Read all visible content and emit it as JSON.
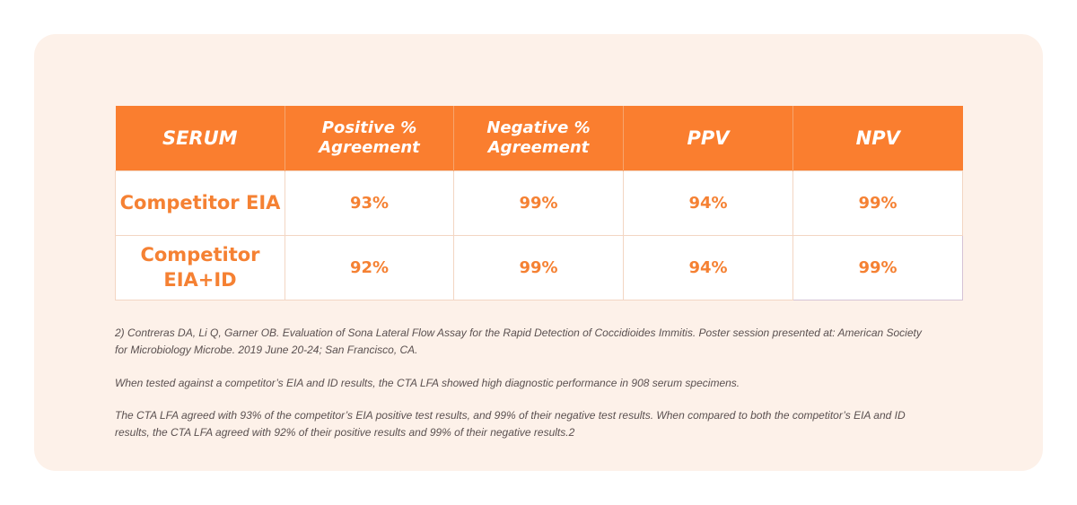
{
  "table": {
    "headers": [
      {
        "line1": "SERUM",
        "line2": ""
      },
      {
        "line1": "Positive %",
        "line2": "Agreement"
      },
      {
        "line1": "Negative %",
        "line2": "Agreement"
      },
      {
        "line1": "PPV",
        "line2": ""
      },
      {
        "line1": "NPV",
        "line2": ""
      }
    ],
    "rows": [
      {
        "label_line1": "Competitor EIA",
        "label_line2": "",
        "values": [
          "93%",
          "99%",
          "94%",
          "99%"
        ]
      },
      {
        "label_line1": "Competitor",
        "label_line2": "EIA+ID",
        "values": [
          "92%",
          "99%",
          "94%",
          "99%"
        ]
      }
    ]
  },
  "notes": {
    "citation": "2) Contreras DA, Li Q, Garner OB. Evaluation of Sona Lateral Flow Assay for the Rapid Detection of Coccidioides Immitis. Poster session presented at: American Society for Microbiology Microbe. 2019 June 20-24; San Francisco, CA.",
    "paragraph1": "When tested against a competitor’s EIA and ID results, the CTA LFA showed high diagnostic performance in 908 serum specimens.",
    "paragraph2": "The CTA LFA agreed with 93% of the competitor’s EIA positive test results, and 99% of their negative test results. When compared to both the competitor’s EIA and ID results, the CTA LFA agreed with 92% of their positive results and 99% of their negative results.2"
  },
  "colors": {
    "header_bg": "#fa7e2f",
    "accent_text": "#f58133",
    "card_bg": "#fdf1e9"
  }
}
